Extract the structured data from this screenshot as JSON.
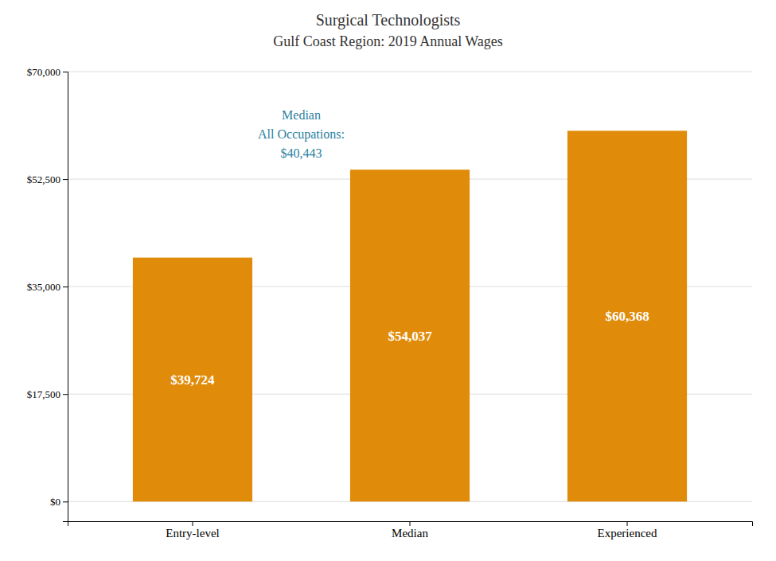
{
  "chart_data": {
    "type": "bar",
    "title": "Surgical Technologists",
    "subtitle": "Gulf Coast Region: 2019 Annual Wages",
    "categories": [
      "Entry-level",
      "Median",
      "Experienced"
    ],
    "values": [
      39724,
      54037,
      60368
    ],
    "value_labels": [
      "$39,724",
      "$54,037",
      "$60,368"
    ],
    "data_labels": true,
    "color": "#E08C0A",
    "ylim": [
      -3200,
      70000
    ],
    "yticks": [
      {
        "value": 0,
        "label": "$0"
      },
      {
        "value": 17500,
        "label": "$17,500"
      },
      {
        "value": 35000,
        "label": "$35,000"
      },
      {
        "value": 52500,
        "label": "$52,500"
      },
      {
        "value": 70000,
        "label": "$70,000"
      }
    ],
    "grid": true,
    "annotation": {
      "text": [
        "Median",
        "All Occupations:",
        "$40,443"
      ],
      "color": "#2A7FA0"
    }
  }
}
